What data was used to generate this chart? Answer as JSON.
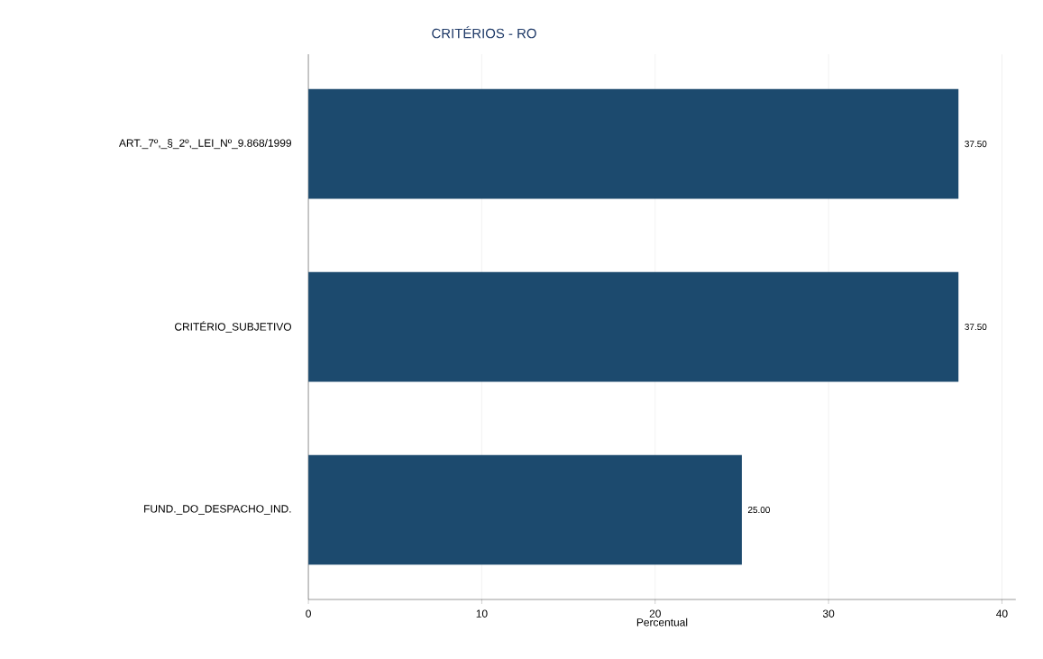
{
  "chart_data": {
    "type": "bar",
    "orientation": "horizontal",
    "title": "CRITÉRIOS - RO",
    "xlabel": "Percentual",
    "categories": [
      "ART._7º,_§_2º,_LEI_Nº_9.868/1999",
      "CRITÉRIO_SUBJETIVO",
      "FUND._DO_DESPACHO_IND."
    ],
    "values": [
      37.5,
      37.5,
      25.0
    ],
    "value_labels": [
      "37.50",
      "37.50",
      "25.00"
    ],
    "color": "#1c4a6e",
    "xlim": [
      0,
      40.8
    ],
    "xticks": [
      0,
      10,
      20,
      30,
      40
    ],
    "grid": "x"
  }
}
